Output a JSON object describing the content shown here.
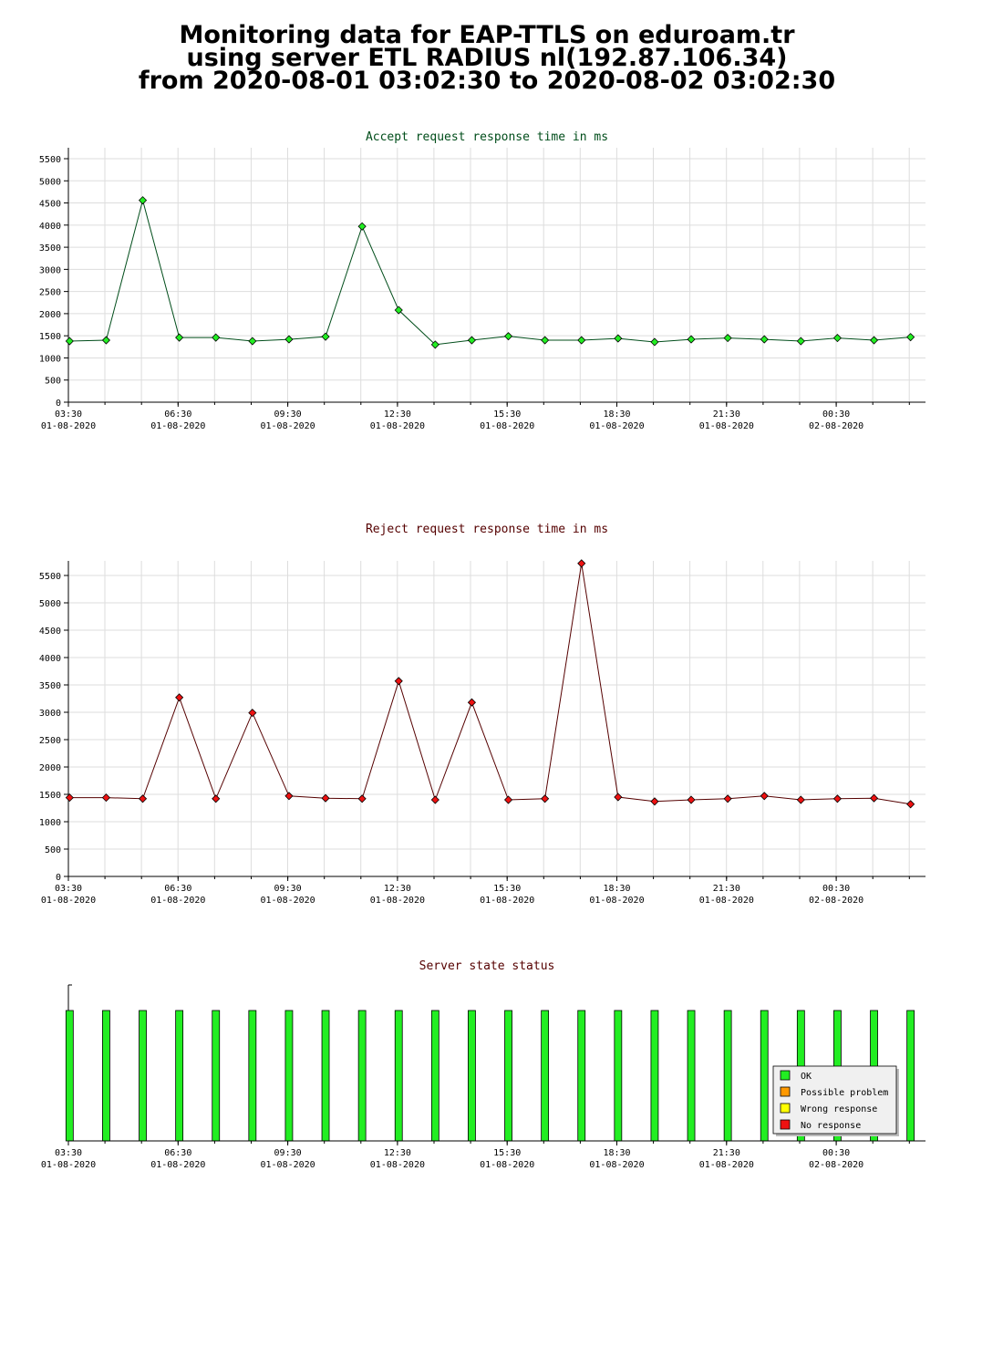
{
  "header": {
    "line1": "Monitoring data for EAP-TTLS on eduroam.tr",
    "line2": "using server ETL RADIUS nl(192.87.106.34)",
    "line3": "from 2020-08-01 03:02:30 to 2020-08-02 03:02:30"
  },
  "colors": {
    "accept_line": "#004d1a",
    "accept_marker": "#22ee22",
    "reject_line": "#550000",
    "reject_marker": "#ee1111",
    "accept_title": "#004d1a",
    "reject_title": "#550000",
    "grid": "#dddddd",
    "ok": "#22ee22",
    "possible_problem": "#ff9900",
    "wrong_response": "#ffff00",
    "no_response": "#ee1111"
  },
  "chart_data": [
    {
      "type": "line",
      "title": "Accept request response time in ms",
      "xlabel": "",
      "ylabel": "",
      "x_ticks": [
        {
          "time": "03:30",
          "date": "01-08-2020"
        },
        {
          "time": "06:30",
          "date": "01-08-2020"
        },
        {
          "time": "09:30",
          "date": "01-08-2020"
        },
        {
          "time": "12:30",
          "date": "01-08-2020"
        },
        {
          "time": "15:30",
          "date": "01-08-2020"
        },
        {
          "time": "18:30",
          "date": "01-08-2020"
        },
        {
          "time": "21:30",
          "date": "01-08-2020"
        },
        {
          "time": "00:30",
          "date": "02-08-2020"
        }
      ],
      "ylim": [
        0,
        5500
      ],
      "yticks": [
        0,
        500,
        1000,
        1500,
        2000,
        2500,
        3000,
        3500,
        4000,
        4500,
        5000,
        5500
      ],
      "grid": true,
      "series": [
        {
          "x": [
            "03:32",
            "04:32",
            "05:32",
            "06:32",
            "07:32",
            "08:32",
            "09:32",
            "10:32",
            "11:32",
            "12:32",
            "13:32",
            "14:32",
            "15:32",
            "16:32",
            "17:32",
            "18:32",
            "19:32",
            "20:32",
            "21:32",
            "22:32",
            "23:32",
            "00:32",
            "01:32",
            "02:32"
          ],
          "values": [
            1380,
            1400,
            4560,
            1460,
            1460,
            1380,
            1420,
            1480,
            3970,
            2080,
            1300,
            1400,
            1490,
            1400,
            1400,
            1440,
            1360,
            1420,
            1450,
            1420,
            1380,
            1450,
            1400,
            1470
          ]
        }
      ]
    },
    {
      "type": "line",
      "title": "Reject request response time in ms",
      "xlabel": "",
      "ylabel": "",
      "x_ticks": [
        {
          "time": "03:30",
          "date": "01-08-2020"
        },
        {
          "time": "06:30",
          "date": "01-08-2020"
        },
        {
          "time": "09:30",
          "date": "01-08-2020"
        },
        {
          "time": "12:30",
          "date": "01-08-2020"
        },
        {
          "time": "15:30",
          "date": "01-08-2020"
        },
        {
          "time": "18:30",
          "date": "01-08-2020"
        },
        {
          "time": "21:30",
          "date": "01-08-2020"
        },
        {
          "time": "00:30",
          "date": "02-08-2020"
        }
      ],
      "ylim": [
        0,
        5500
      ],
      "yticks": [
        0,
        500,
        1000,
        1500,
        2000,
        2500,
        3000,
        3500,
        4000,
        4500,
        5000,
        5500
      ],
      "grid": true,
      "series": [
        {
          "x": [
            "03:32",
            "04:32",
            "05:32",
            "06:32",
            "07:32",
            "08:32",
            "09:32",
            "10:32",
            "11:32",
            "12:32",
            "13:32",
            "14:32",
            "15:32",
            "16:32",
            "17:32",
            "18:32",
            "19:32",
            "20:32",
            "21:32",
            "22:32",
            "23:32",
            "00:32",
            "01:32",
            "02:32"
          ],
          "values": [
            1440,
            1440,
            1420,
            3270,
            1420,
            2990,
            1470,
            1430,
            1420,
            3570,
            1400,
            3180,
            1400,
            1420,
            5720,
            1450,
            1370,
            1400,
            1420,
            1470,
            1400,
            1420,
            1430,
            1320
          ]
        }
      ]
    },
    {
      "type": "bar",
      "title": "Server state status",
      "xlabel": "",
      "ylabel": "",
      "x_ticks": [
        {
          "time": "03:30",
          "date": "01-08-2020"
        },
        {
          "time": "06:30",
          "date": "01-08-2020"
        },
        {
          "time": "09:30",
          "date": "01-08-2020"
        },
        {
          "time": "12:30",
          "date": "01-08-2020"
        },
        {
          "time": "15:30",
          "date": "01-08-2020"
        },
        {
          "time": "18:30",
          "date": "01-08-2020"
        },
        {
          "time": "21:30",
          "date": "01-08-2020"
        },
        {
          "time": "00:30",
          "date": "02-08-2020"
        }
      ],
      "categories": [
        "03:32",
        "04:32",
        "05:32",
        "06:32",
        "07:32",
        "08:32",
        "09:32",
        "10:32",
        "11:32",
        "12:32",
        "13:32",
        "14:32",
        "15:32",
        "16:32",
        "17:32",
        "18:32",
        "19:32",
        "20:32",
        "21:32",
        "22:32",
        "23:32",
        "00:32",
        "01:32",
        "02:32"
      ],
      "states": [
        "OK",
        "OK",
        "OK",
        "OK",
        "OK",
        "OK",
        "OK",
        "OK",
        "OK",
        "OK",
        "OK",
        "OK",
        "OK",
        "OK",
        "OK",
        "OK",
        "OK",
        "OK",
        "OK",
        "OK",
        "OK",
        "OK",
        "OK",
        "OK"
      ],
      "legend": {
        "position": "bottom-right",
        "entries": [
          "OK",
          "Possible problem",
          "Wrong response",
          "No response"
        ]
      }
    }
  ]
}
